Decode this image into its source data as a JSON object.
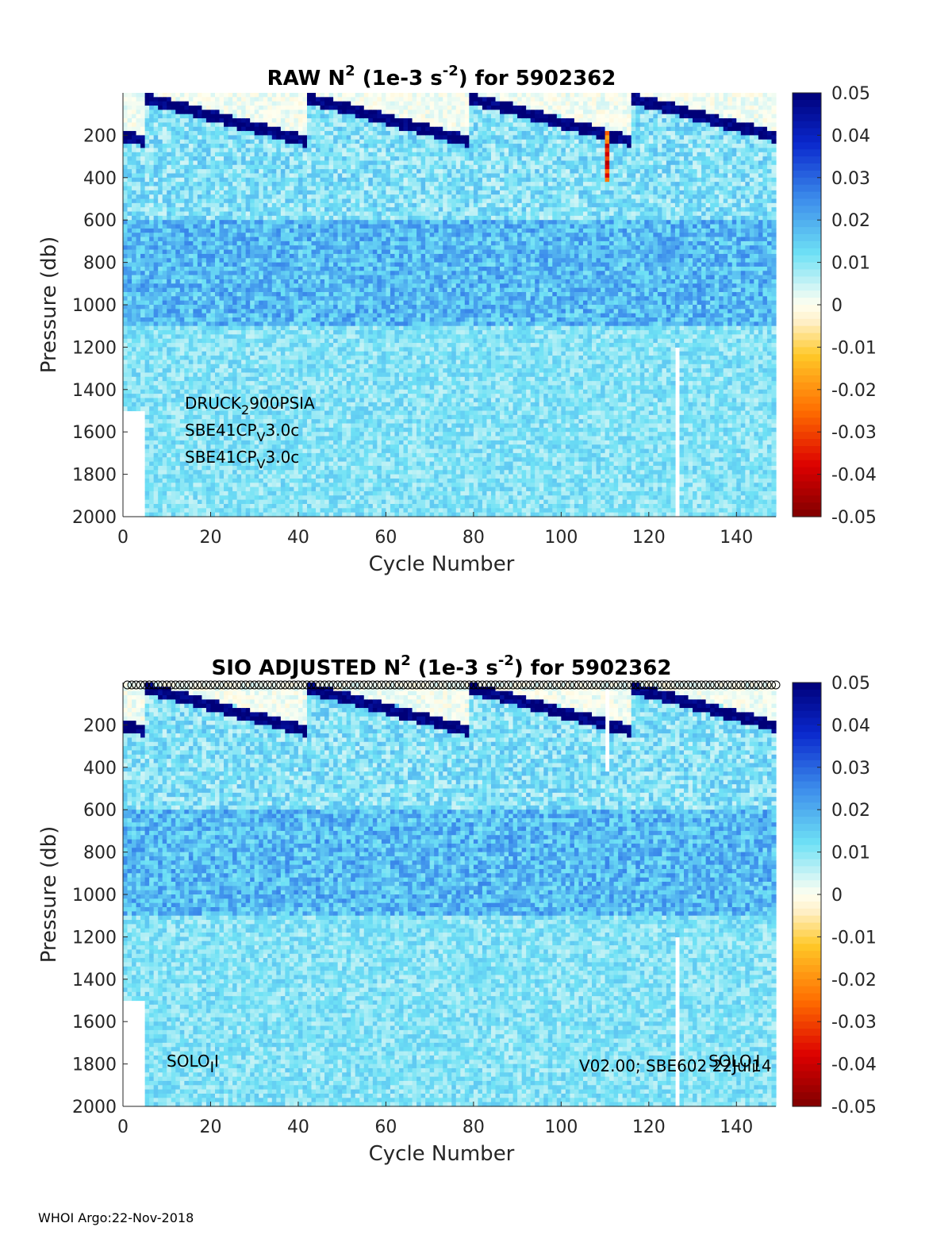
{
  "footer": "WHOI Argo:22-Nov-2018",
  "chart_data": [
    {
      "type": "heatmap",
      "title_parts": [
        "RAW N",
        "2",
        " (1e-3 s",
        "-2",
        ") for 5902362"
      ],
      "xlabel": "Cycle Number",
      "ylabel": "Pressure (db)",
      "xlim": [
        0,
        149
      ],
      "ylim": [
        0,
        2000
      ],
      "y_reversed": true,
      "x_ticks": [
        0,
        20,
        40,
        60,
        80,
        100,
        120,
        140
      ],
      "y_ticks": [
        200,
        400,
        600,
        800,
        1000,
        1200,
        1400,
        1600,
        1800,
        2000
      ],
      "colorbar": {
        "min": -0.05,
        "max": 0.05,
        "ticks": [
          "0.05",
          "0.04",
          "0.03",
          "0.02",
          "0.01",
          "0",
          "-0.01",
          "-0.02",
          "-0.03",
          "-0.04",
          "-0.05"
        ]
      },
      "annotations": [
        {
          "base": "DRUCK",
          "sub": "2",
          "rest": "900PSIA"
        },
        {
          "base": "SBE41CP",
          "sub": "V",
          "rest": "3.0c"
        },
        {
          "base": "SBE41CP",
          "sub": "V",
          "rest": "3.0c"
        }
      ]
    },
    {
      "type": "heatmap",
      "title_parts": [
        "SIO  ADJUSTED N",
        "2",
        " (1e-3 s",
        "-2",
        ") for 5902362"
      ],
      "xlabel": "Cycle Number",
      "ylabel": "Pressure (db)",
      "xlim": [
        0,
        149
      ],
      "ylim": [
        0,
        2000
      ],
      "y_reversed": true,
      "x_ticks": [
        0,
        20,
        40,
        60,
        80,
        100,
        120,
        140
      ],
      "y_ticks": [
        200,
        400,
        600,
        800,
        1000,
        1200,
        1400,
        1600,
        1800,
        2000
      ],
      "colorbar": {
        "min": -0.05,
        "max": 0.05,
        "ticks": [
          "0.05",
          "0.04",
          "0.03",
          "0.02",
          "0.01",
          "0",
          "-0.01",
          "-0.02",
          "-0.03",
          "-0.04",
          "-0.05"
        ]
      },
      "markers": "circles",
      "annotations": [
        {
          "base": "SOLO",
          "sub": "I",
          "rest": "I"
        },
        {
          "base": "V02.00; SBE602 22Jul14",
          "sub": "",
          "rest": ""
        },
        {
          "base": "SOLO",
          "sub": "I",
          "rest": "I"
        }
      ]
    }
  ]
}
